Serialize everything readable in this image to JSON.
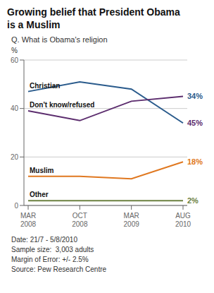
{
  "chart_data": {
    "type": "line",
    "title": "Growing belief that President Obama\nis a Muslim",
    "subtitle": "Q. What is Obama's religion",
    "ylabel": "%",
    "categories": [
      "MAR\n2008",
      "OCT\n2008",
      "MAR\n2009",
      "AUG\n2010"
    ],
    "series": [
      {
        "name": "Christian",
        "color": "#2a5b8c",
        "values": [
          47,
          51,
          48,
          34
        ]
      },
      {
        "name": "Don't know/refused",
        "color": "#5c2d6e",
        "values": [
          39,
          35,
          43,
          45
        ]
      },
      {
        "name": "Muslim",
        "color": "#e07820",
        "values": [
          12,
          12,
          11,
          18
        ]
      },
      {
        "name": "Other",
        "color": "#6b8040",
        "values": [
          2,
          2,
          2,
          2
        ]
      }
    ],
    "ylim": [
      0,
      60
    ],
    "yticks": [
      0,
      20,
      40,
      60
    ],
    "grid": true,
    "annotations": [
      {
        "text": "45%",
        "x": "AUG\n2010",
        "y": 34,
        "color": "#5c2d6e"
      },
      {
        "text": "34%",
        "x": "AUG\n2010",
        "y": 45,
        "color": "#2a5b8c"
      },
      {
        "text": "18%",
        "x": "AUG\n2010",
        "y": 18,
        "color": "#e07820"
      },
      {
        "text": "2%",
        "x": "AUG\n2010",
        "y": 2,
        "color": "#6b8040"
      }
    ],
    "footnote": [
      "Date: 21/7 - 5/8/2010",
      "Sample size:  3,003 adults",
      "Margin of Error: +/- 2.5%",
      "Source: Pew Research Centre"
    ]
  }
}
